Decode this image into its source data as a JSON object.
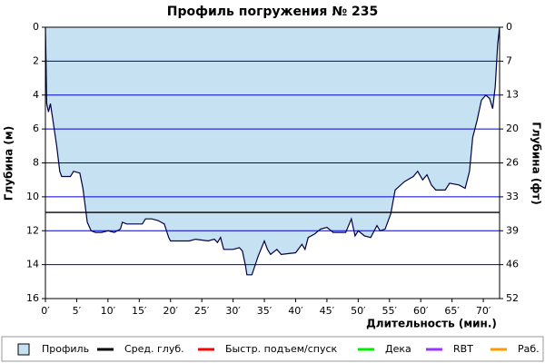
{
  "chart_data": {
    "type": "area",
    "title": "Профиль погружения № 235",
    "x_label": "Длительность (мин.)",
    "y_label": "Глубина (м)",
    "y2_label": "Глубина (фт)",
    "xlim": [
      0,
      72.6
    ],
    "ylim": [
      16,
      0
    ],
    "y2lim": [
      52.49,
      0
    ],
    "xticks": [
      {
        "value": 0,
        "label": "0′"
      },
      {
        "value": 5,
        "label": "5′"
      },
      {
        "value": 10,
        "label": "10′"
      },
      {
        "value": 15,
        "label": "15′"
      },
      {
        "value": 20,
        "label": "20′"
      },
      {
        "value": 25,
        "label": "25′"
      },
      {
        "value": 30,
        "label": "30′"
      },
      {
        "value": 35,
        "label": "35′"
      },
      {
        "value": 40,
        "label": "40′"
      },
      {
        "value": 45,
        "label": "45′"
      },
      {
        "value": 50,
        "label": "50′"
      },
      {
        "value": 55,
        "label": "55′"
      },
      {
        "value": 60,
        "label": "60′"
      },
      {
        "value": 65,
        "label": "65′"
      },
      {
        "value": 70,
        "label": "70′"
      }
    ],
    "yticks": [
      0,
      2,
      4,
      6,
      8,
      10,
      12,
      14,
      16
    ],
    "y2ticks": [
      0,
      {
        "value": 6.56,
        "label": "7"
      },
      {
        "value": 13.12,
        "label": "13"
      },
      {
        "value": 19.69,
        "label": "20"
      },
      {
        "value": 26.25,
        "label": "26"
      },
      {
        "value": 32.81,
        "label": "33"
      },
      {
        "value": 39.37,
        "label": "39"
      },
      {
        "value": 45.93,
        "label": "46"
      },
      {
        "value": 52.49,
        "label": "52"
      }
    ],
    "grid": true,
    "grid_color": "#0000cc",
    "x": [
      0,
      0.1,
      0.2,
      0.5,
      0.8,
      1.2,
      1.8,
      2.3,
      2.6,
      4,
      4.5,
      5.5,
      6,
      6.7,
      7.3,
      8,
      9,
      10,
      11,
      12,
      12.3,
      13,
      15.5,
      16,
      17,
      18,
      19,
      19.7,
      20,
      23,
      24,
      26,
      27,
      27.5,
      28,
      28.5,
      30,
      31,
      31.5,
      32,
      32.2,
      33,
      34,
      35,
      35.5,
      36,
      37,
      37.7,
      40,
      41,
      41.5,
      42,
      43,
      44,
      45,
      46,
      48,
      48.9,
      49.5,
      50,
      51,
      52,
      53,
      53.5,
      54.3,
      55.2,
      55.9,
      57.4,
      58.8,
      59.5,
      60.3,
      61,
      61.7,
      62.4,
      63.9,
      64.6,
      66.1,
      67.1,
      67.8,
      68.3,
      69,
      69.7,
      70.4,
      71,
      71.5,
      71.9,
      72.3,
      72.6
    ],
    "series": [
      {
        "name": "Профиль",
        "color": "#c6e2f2",
        "line_color": "#000044",
        "values": [
          0,
          2,
          4.5,
          5,
          4.5,
          5.5,
          7,
          8.5,
          8.8,
          8.8,
          8.5,
          8.6,
          9.5,
          11.5,
          12,
          12.1,
          12.1,
          12,
          12.1,
          11.9,
          11.5,
          11.6,
          11.6,
          11.3,
          11.3,
          11.4,
          11.6,
          12.4,
          12.6,
          12.6,
          12.5,
          12.6,
          12.5,
          12.7,
          12.4,
          13.1,
          13.1,
          13,
          13.2,
          14.1,
          14.6,
          14.6,
          13.5,
          12.6,
          13.1,
          13.4,
          13.1,
          13.4,
          13.3,
          12.8,
          13.1,
          12.4,
          12.2,
          11.9,
          11.8,
          12.1,
          12.1,
          11.3,
          12.3,
          12,
          12.3,
          12.4,
          11.7,
          12,
          11.9,
          11,
          9.6,
          9.1,
          8.8,
          8.5,
          9,
          8.7,
          9.3,
          9.6,
          9.6,
          9.2,
          9.3,
          9.5,
          8.5,
          6.5,
          5.5,
          4.3,
          4,
          4.2,
          4.8,
          3.5,
          1,
          0
        ]
      },
      {
        "name": "Сред. глуб.",
        "color": "#000000",
        "value": 10.92
      }
    ],
    "legend": [
      {
        "name": "Быстр. подъем/спуск",
        "color": "#ff0000"
      },
      {
        "name": "Дека",
        "color": "#00ee00"
      },
      {
        "name": "RBT",
        "color": "#9933ff"
      },
      {
        "name": "Раб.",
        "color": "#ff9900"
      }
    ]
  }
}
